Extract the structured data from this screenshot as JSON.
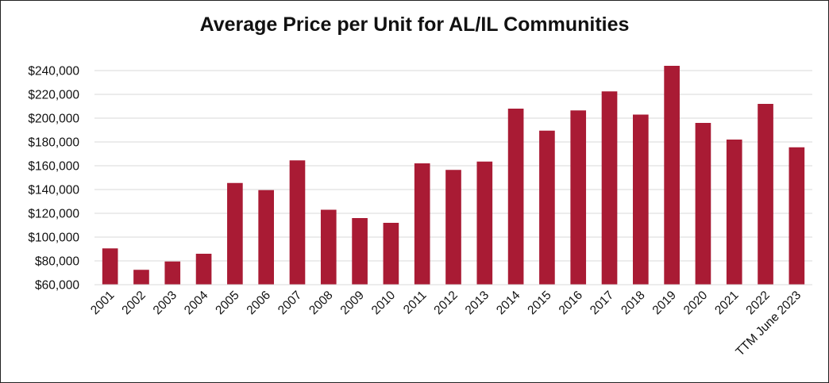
{
  "chart_data": {
    "type": "bar",
    "title": "Average Price per Unit for AL/IL Communities",
    "xlabel": "",
    "ylabel": "",
    "ylim": [
      60000,
      240000
    ],
    "yticks": [
      60000,
      80000,
      100000,
      120000,
      140000,
      160000,
      180000,
      200000,
      220000,
      240000
    ],
    "ytick_labels": [
      "$60,000",
      "$80,000",
      "$100,000",
      "$120,000",
      "$140,000",
      "$160,000",
      "$180,000",
      "$200,000",
      "$220,000",
      "$240,000"
    ],
    "categories": [
      "2001",
      "2002",
      "2003",
      "2004",
      "2005",
      "2006",
      "2007",
      "2008",
      "2009",
      "2010",
      "2011",
      "2012",
      "2013",
      "2014",
      "2015",
      "2016",
      "2017",
      "2018",
      "2019",
      "2020",
      "2021",
      "2022",
      "TTM June 2023"
    ],
    "values": [
      90500,
      72500,
      79500,
      86000,
      145500,
      139500,
      164500,
      123000,
      116000,
      112000,
      162000,
      156500,
      163500,
      208000,
      189500,
      206500,
      222500,
      203000,
      244000,
      196000,
      182000,
      212000,
      175500
    ],
    "grid": true,
    "legend": "none",
    "bar_color": "#A91B34",
    "grid_color": "#D9D9D9"
  }
}
